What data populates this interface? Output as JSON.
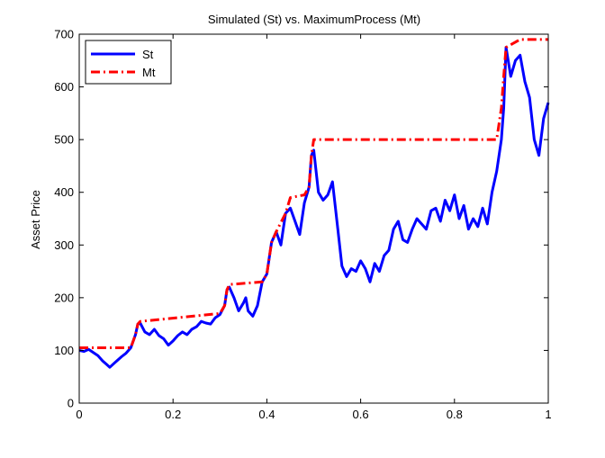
{
  "chart_data": {
    "type": "line",
    "title": "Simulated (St) vs. MaximumProcess (Mt)",
    "xlabel": "",
    "ylabel": "Asset Price",
    "xlim": [
      0,
      1
    ],
    "ylim": [
      0,
      700
    ],
    "x_ticks": [
      0,
      0.2,
      0.4,
      0.6,
      0.8,
      1
    ],
    "x_tick_labels": [
      "0",
      "0.2",
      "0.4",
      "0.6",
      "0.8",
      "1"
    ],
    "y_ticks": [
      0,
      100,
      200,
      300,
      400,
      500,
      600,
      700
    ],
    "y_tick_labels": [
      "0",
      "100",
      "200",
      "300",
      "400",
      "500",
      "600",
      "700"
    ],
    "grid": false,
    "legend_position": "top-left",
    "series": [
      {
        "name": "St",
        "color": "#0000ff",
        "style": "solid",
        "x": [
          0,
          0.01,
          0.02,
          0.03,
          0.04,
          0.05,
          0.06,
          0.065,
          0.07,
          0.08,
          0.09,
          0.1,
          0.11,
          0.12,
          0.125,
          0.13,
          0.14,
          0.15,
          0.16,
          0.17,
          0.18,
          0.19,
          0.2,
          0.21,
          0.22,
          0.23,
          0.24,
          0.25,
          0.26,
          0.27,
          0.28,
          0.29,
          0.3,
          0.31,
          0.315,
          0.32,
          0.33,
          0.34,
          0.35,
          0.355,
          0.36,
          0.37,
          0.38,
          0.39,
          0.4,
          0.41,
          0.42,
          0.43,
          0.44,
          0.45,
          0.46,
          0.47,
          0.48,
          0.49,
          0.495,
          0.5,
          0.51,
          0.52,
          0.53,
          0.54,
          0.55,
          0.56,
          0.57,
          0.58,
          0.59,
          0.6,
          0.61,
          0.62,
          0.63,
          0.64,
          0.65,
          0.66,
          0.67,
          0.68,
          0.69,
          0.7,
          0.71,
          0.72,
          0.73,
          0.74,
          0.75,
          0.76,
          0.77,
          0.78,
          0.79,
          0.8,
          0.81,
          0.82,
          0.83,
          0.84,
          0.85,
          0.86,
          0.87,
          0.88,
          0.89,
          0.9,
          0.905,
          0.91,
          0.92,
          0.93,
          0.94,
          0.95,
          0.96,
          0.97,
          0.98,
          0.99,
          1.0
        ],
        "values": [
          100,
          98,
          102,
          96,
          90,
          80,
          72,
          68,
          72,
          80,
          88,
          95,
          105,
          130,
          150,
          152,
          135,
          130,
          140,
          128,
          122,
          110,
          118,
          128,
          135,
          130,
          140,
          145,
          155,
          152,
          150,
          162,
          168,
          185,
          215,
          220,
          200,
          175,
          190,
          200,
          175,
          165,
          185,
          230,
          245,
          305,
          325,
          300,
          360,
          370,
          345,
          320,
          380,
          410,
          470,
          480,
          400,
          385,
          395,
          420,
          340,
          260,
          240,
          255,
          250,
          270,
          255,
          230,
          265,
          250,
          280,
          290,
          330,
          345,
          310,
          305,
          330,
          350,
          340,
          330,
          365,
          370,
          345,
          385,
          365,
          395,
          350,
          375,
          330,
          350,
          335,
          370,
          340,
          400,
          440,
          500,
          560,
          675,
          620,
          650,
          660,
          610,
          580,
          500,
          470,
          540,
          570
        ]
      },
      {
        "name": "Mt",
        "color": "#ff0000",
        "style": "dash-dot",
        "x": [
          0,
          0.11,
          0.12,
          0.125,
          0.13,
          0.3,
          0.31,
          0.315,
          0.32,
          0.39,
          0.4,
          0.41,
          0.42,
          0.44,
          0.45,
          0.48,
          0.49,
          0.495,
          0.5,
          0.89,
          0.9,
          0.905,
          0.91,
          0.92,
          0.93,
          0.94,
          1.0
        ],
        "values": [
          105,
          105,
          130,
          150,
          155,
          170,
          185,
          215,
          225,
          230,
          245,
          305,
          325,
          360,
          390,
          395,
          410,
          470,
          500,
          500,
          560,
          620,
          675,
          680,
          685,
          690,
          690
        ]
      }
    ]
  }
}
